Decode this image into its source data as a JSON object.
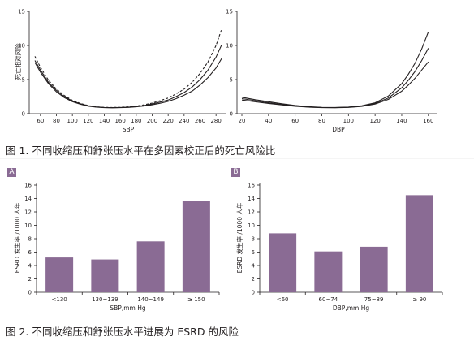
{
  "chart_data": [
    {
      "id": "sbp",
      "type": "line",
      "ylabel": "死亡相对风险",
      "xlabel": "SBP",
      "xlim": [
        50,
        290
      ],
      "ylim": [
        0,
        15
      ],
      "xticks": [
        60,
        80,
        100,
        120,
        140,
        160,
        180,
        200,
        220,
        240,
        260,
        280
      ],
      "yticks": [
        0,
        5,
        10,
        15
      ],
      "series": [
        {
          "style": "solid",
          "x": [
            53,
            60,
            70,
            80,
            90,
            100,
            110,
            120,
            130,
            140,
            150,
            160,
            170,
            180,
            190,
            200,
            210,
            220,
            230,
            240,
            250,
            260,
            270,
            280,
            287
          ],
          "y": [
            7.8,
            6.4,
            4.6,
            3.4,
            2.5,
            1.85,
            1.45,
            1.15,
            0.98,
            0.9,
            0.88,
            0.9,
            0.95,
            1.05,
            1.2,
            1.4,
            1.7,
            2.0,
            2.5,
            3.1,
            3.9,
            5.0,
            6.4,
            8.3,
            10.1
          ]
        },
        {
          "style": "solid",
          "x": [
            53,
            60,
            70,
            80,
            90,
            100,
            110,
            120,
            130,
            140,
            150,
            160,
            170,
            180,
            190,
            200,
            210,
            220,
            230,
            240,
            250,
            260,
            270,
            280,
            287
          ],
          "y": [
            7.5,
            6.1,
            4.4,
            3.2,
            2.35,
            1.75,
            1.38,
            1.1,
            0.95,
            0.88,
            0.86,
            0.88,
            0.92,
            1.0,
            1.12,
            1.3,
            1.52,
            1.8,
            2.2,
            2.7,
            3.3,
            4.2,
            5.3,
            6.7,
            8.1
          ]
        },
        {
          "style": "dashed",
          "x": [
            53,
            60,
            70,
            80,
            90,
            100,
            110,
            120,
            130,
            140,
            150,
            160,
            170,
            180,
            190,
            200,
            210,
            220,
            230,
            240,
            250,
            260,
            270,
            280,
            287
          ],
          "y": [
            8.4,
            6.8,
            4.9,
            3.6,
            2.65,
            1.95,
            1.5,
            1.18,
            1.0,
            0.92,
            0.9,
            0.93,
            1.0,
            1.12,
            1.3,
            1.55,
            1.9,
            2.3,
            2.9,
            3.6,
            4.6,
            5.9,
            7.6,
            10.0,
            12.4
          ]
        }
      ]
    },
    {
      "id": "dbp",
      "type": "line",
      "xlabel": "DBP",
      "xlim": [
        20,
        165
      ],
      "ylim": [
        0,
        15
      ],
      "xticks": [
        20,
        40,
        60,
        80,
        100,
        120,
        140,
        160
      ],
      "yticks": [
        0,
        5,
        10,
        15
      ],
      "series": [
        {
          "style": "solid",
          "x": [
            20,
            30,
            40,
            50,
            60,
            70,
            80,
            90,
            100,
            110,
            120,
            130,
            140,
            145,
            150,
            155,
            160
          ],
          "y": [
            2.4,
            2.05,
            1.75,
            1.45,
            1.2,
            1.02,
            0.92,
            0.9,
            0.96,
            1.15,
            1.6,
            2.6,
            4.4,
            5.8,
            7.4,
            9.5,
            12.0
          ]
        },
        {
          "style": "solid",
          "x": [
            20,
            30,
            40,
            50,
            60,
            70,
            80,
            90,
            100,
            110,
            120,
            130,
            140,
            145,
            150,
            155,
            160
          ],
          "y": [
            2.2,
            1.9,
            1.6,
            1.35,
            1.13,
            0.98,
            0.9,
            0.88,
            0.94,
            1.1,
            1.5,
            2.3,
            3.8,
            4.9,
            6.2,
            7.8,
            9.6
          ]
        },
        {
          "style": "solid",
          "x": [
            20,
            30,
            40,
            50,
            60,
            70,
            80,
            90,
            100,
            110,
            120,
            130,
            140,
            145,
            150,
            155,
            160
          ],
          "y": [
            2.0,
            1.75,
            1.5,
            1.28,
            1.08,
            0.95,
            0.88,
            0.87,
            0.92,
            1.06,
            1.4,
            2.1,
            3.3,
            4.2,
            5.2,
            6.4,
            7.6
          ]
        }
      ]
    },
    {
      "id": "panel-a",
      "type": "bar",
      "panel": "A",
      "ylabel": "ESRD 发生率 /1000 人年",
      "xlabel": "SBP,mm Hg",
      "categories": [
        "<130",
        "130~139",
        "140~149",
        "≥ 150"
      ],
      "values": [
        5.2,
        4.9,
        7.6,
        13.6
      ],
      "ylim": [
        0,
        16
      ],
      "yticks": [
        0,
        2,
        4,
        6,
        8,
        10,
        12,
        14,
        16
      ],
      "color": "#8a6b94"
    },
    {
      "id": "panel-b",
      "type": "bar",
      "panel": "B",
      "ylabel": "ESRD 发生率 /1000 人年",
      "xlabel": "DBP,mm Hg",
      "categories": [
        "<60",
        "60~74",
        "75~89",
        "≥ 90"
      ],
      "values": [
        8.8,
        6.1,
        6.8,
        14.5
      ],
      "ylim": [
        0,
        16
      ],
      "yticks": [
        0,
        2,
        4,
        6,
        8,
        10,
        12,
        14,
        16
      ],
      "color": "#8a6b94"
    }
  ],
  "captions": {
    "fig1": "图 1. 不同收缩压和舒张压水平在多因素校正后的死亡风险比",
    "fig2": "图 2. 不同收缩压和舒张压水平进展为 ESRD 的风险"
  }
}
